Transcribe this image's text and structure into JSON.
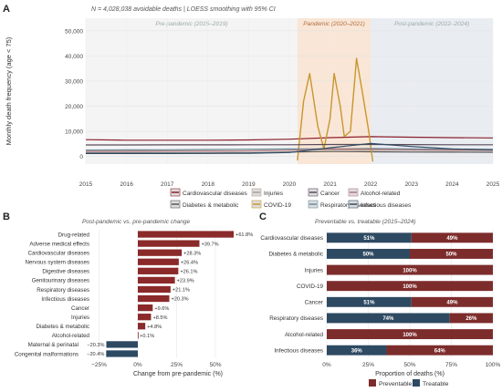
{
  "panels": {
    "a": "A",
    "b": "B",
    "c": "C"
  },
  "colors": {
    "pandemic_band": "#f9e6d6",
    "postpandemic_band": "#e9edf2",
    "prepandemic_band": "#f4f4f4",
    "preventable": "#7d2c2c",
    "treatable": "#2e4a62",
    "bar_b": "#8b2a2a",
    "bar_b_negative": "#2e4a62"
  },
  "chart_data": [
    {
      "type": "line",
      "subtitle": "N = 4,028,038 avoidable deaths | LOESS smoothing with 95% CI",
      "ylabel": "Monthly death frequency (age < 75)",
      "xlabel": "",
      "xlim": [
        2015,
        2025
      ],
      "ylim": [
        -3000,
        55000
      ],
      "x_ticks": [
        "2015",
        "2016",
        "2017",
        "2018",
        "2019",
        "2020",
        "2021",
        "2022",
        "2023",
        "2024",
        "2025"
      ],
      "y_ticks": [
        "0",
        "10,000",
        "20,000",
        "30,000",
        "40,000",
        "50,000"
      ],
      "periods": [
        {
          "label": "Pre-pandemic (2015–2019)",
          "start": 2015,
          "end": 2020.2
        },
        {
          "label": "Pandemic (2020–2021)",
          "start": 2020.2,
          "end": 2022.0
        },
        {
          "label": "Post-pandemic (2022–2024)",
          "start": 2022.0,
          "end": 2025
        }
      ],
      "legend_position": "bottom",
      "grid": true,
      "series": [
        {
          "name": "Cardiovascular diseases",
          "color": "#8b1f2b",
          "x": [
            2015,
            2016,
            2017,
            2018,
            2019,
            2020,
            2021,
            2022,
            2023,
            2024,
            2025
          ],
          "y": [
            6700,
            6500,
            6500,
            6500,
            6600,
            6900,
            7500,
            7900,
            7700,
            7500,
            7400
          ]
        },
        {
          "name": "Diabetes & metabolic",
          "color": "#555555",
          "x": [
            2015,
            2016,
            2017,
            2018,
            2019,
            2020,
            2021,
            2022,
            2023,
            2024,
            2025
          ],
          "y": [
            1400,
            1400,
            1400,
            1400,
            1450,
            1800,
            2000,
            1900,
            1800,
            1750,
            1700
          ]
        },
        {
          "name": "Injuries",
          "color": "#b0a090",
          "x": [
            2015,
            2016,
            2017,
            2018,
            2019,
            2020,
            2021,
            2022,
            2023,
            2024,
            2025
          ],
          "y": [
            2200,
            2200,
            2250,
            2250,
            2300,
            2500,
            2700,
            2600,
            2500,
            2450,
            2400
          ]
        },
        {
          "name": "COVID-19",
          "color": "#c8962e",
          "x": [
            2020.2,
            2020.35,
            2020.5,
            2020.7,
            2020.85,
            2021.0,
            2021.1,
            2021.25,
            2021.35,
            2021.5,
            2021.65,
            2021.8,
            2021.95,
            2022.05
          ],
          "y": [
            -1500,
            22000,
            33000,
            12000,
            3000,
            15000,
            33000,
            20000,
            8000,
            10000,
            39000,
            25000,
            10000,
            -2000
          ]
        },
        {
          "name": "Cancer",
          "color": "#5a4a5a",
          "x": [
            2015,
            2016,
            2017,
            2018,
            2019,
            2020,
            2021,
            2022,
            2023,
            2024,
            2025
          ],
          "y": [
            4600,
            4600,
            4650,
            4650,
            4700,
            4700,
            4800,
            4800,
            4750,
            4700,
            4700
          ]
        },
        {
          "name": "Respiratory diseases",
          "color": "#6a8a9a",
          "x": [
            2015,
            2016,
            2017,
            2018,
            2019,
            2020,
            2021,
            2022,
            2023,
            2024,
            2025
          ],
          "y": [
            2600,
            2650,
            2700,
            2800,
            2900,
            3000,
            3100,
            3200,
            3000,
            2900,
            2850
          ]
        },
        {
          "name": "Alcohol-related",
          "color": "#b27a82",
          "x": [
            2015,
            2016,
            2017,
            2018,
            2019,
            2020,
            2021,
            2022,
            2023,
            2024,
            2025
          ],
          "y": [
            2000,
            2050,
            2100,
            2100,
            2150,
            2500,
            3000,
            2900,
            2700,
            2600,
            2550
          ]
        },
        {
          "name": "Infectious diseases",
          "color": "#2e4a62",
          "x": [
            2015,
            2016,
            2017,
            2018,
            2019,
            2020,
            2021,
            2022,
            2023,
            2024,
            2025
          ],
          "y": [
            1200,
            1200,
            1200,
            1250,
            1300,
            1600,
            3500,
            5200,
            4000,
            3000,
            2700
          ]
        }
      ]
    },
    {
      "type": "bar",
      "orientation": "horizontal",
      "subtitle": "Post-pandemic vs. pre-pandemic change",
      "xlabel": "Change from pre-pandemic (%)",
      "xlim": [
        -30,
        70
      ],
      "x_ticks": [
        -25,
        0,
        25,
        50
      ],
      "x_tick_labels": [
        "−25%",
        "0%",
        "25%",
        "50%"
      ],
      "categories": [
        "Drug-related",
        "Adverse medical effects",
        "Cardiovascular diseases",
        "Nervous system diseases",
        "Digestive diseases",
        "Genitourinary diseases",
        "Respiratory diseases",
        "Infectious diseases",
        "Cancer",
        "Injuries",
        "Diabetes & metabolic",
        "Alcohol-related",
        "Maternal & perinatal",
        "Congenital malformations"
      ],
      "values": [
        61.8,
        39.7,
        28.3,
        26.4,
        26.1,
        23.9,
        21.1,
        20.3,
        9.6,
        8.5,
        4.8,
        0.1,
        -20.3,
        -20.4
      ],
      "labels": [
        "+61.8%",
        "+39.7%",
        "+28.3%",
        "+26.4%",
        "+26.1%",
        "+23.9%",
        "+21.1%",
        "+20.3%",
        "+9.6%",
        "+8.5%",
        "+4.8%",
        "+0.1%",
        "−20.3%",
        "−20.4%"
      ]
    },
    {
      "type": "bar",
      "orientation": "horizontal",
      "stacked": true,
      "subtitle": "Preventable vs. treatable (2015–2024)",
      "xlabel": "Proportion of deaths (%)",
      "xlim": [
        0,
        100
      ],
      "x_tick_labels": [
        "0%",
        "25%",
        "50%",
        "75%",
        "100%"
      ],
      "categories": [
        "Cardiovascular diseases",
        "Diabetes & metabolic",
        "Injuries",
        "COVID-19",
        "Cancer",
        "Respiratory diseases",
        "Alcohol-related",
        "Infectious diseases"
      ],
      "legend_position": "bottom",
      "series": [
        {
          "name": "Treatable",
          "color": "#2e4a62",
          "values": [
            51,
            50,
            0,
            0,
            51,
            74,
            0,
            36
          ],
          "labels": [
            "51%",
            "50%",
            "",
            "",
            "51%",
            "74%",
            "",
            "36%"
          ]
        },
        {
          "name": "Preventable",
          "color": "#7d2c2c",
          "values": [
            49,
            50,
            100,
            100,
            49,
            26,
            100,
            64
          ],
          "labels": [
            "49%",
            "50%",
            "100%",
            "100%",
            "49%",
            "26%",
            "100%",
            "64%"
          ]
        }
      ],
      "legend_order": [
        "Preventable",
        "Treatable"
      ]
    }
  ]
}
